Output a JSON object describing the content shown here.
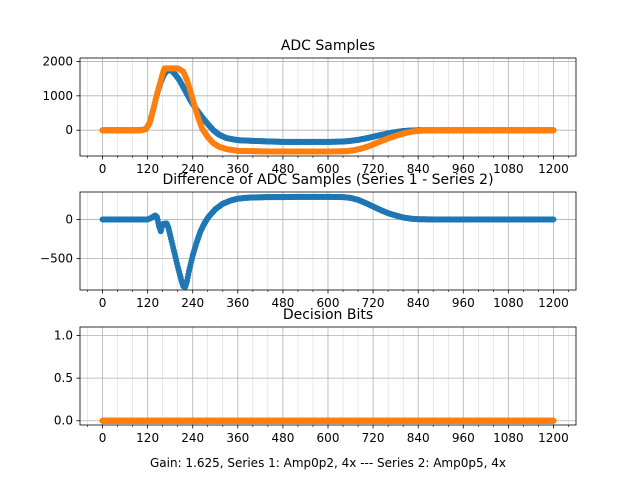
{
  "figure": {
    "caption": "Gain: 1.625, Series 1: Amp0p2, 4x --- Series 2: Amp0p5, 4x"
  },
  "colors": {
    "series1": "#1f77b4",
    "series2": "#ff7f0e",
    "grid": "#b0b0b0",
    "axes": "#000000"
  },
  "chart_data": [
    {
      "type": "scatter",
      "title": "ADC Samples",
      "xlabel": "",
      "ylabel": "",
      "xlim": [
        -60,
        1260
      ],
      "ylim": [
        -750,
        2100
      ],
      "x_ticks": [
        0,
        120,
        240,
        360,
        480,
        600,
        720,
        840,
        960,
        1080,
        1200
      ],
      "x_tick_labels": [
        "0",
        "120",
        "240",
        "360",
        "480",
        "600",
        "720",
        "840",
        "960",
        "1080",
        "1200"
      ],
      "x_minor_step": 40,
      "y_ticks": [
        0,
        1000,
        2000
      ],
      "y_tick_labels": [
        "0",
        "1000",
        "2000"
      ],
      "grid": true,
      "series": [
        {
          "key": "series1",
          "x": [
            0,
            100,
            115,
            125,
            135,
            145,
            155,
            165,
            175,
            185,
            195,
            205,
            215,
            225,
            235,
            250,
            265,
            280,
            295,
            310,
            330,
            360,
            400,
            450,
            480,
            500,
            550,
            600,
            640,
            660,
            680,
            700,
            720,
            740,
            760,
            780,
            800,
            820,
            850,
            900,
            1000,
            1100,
            1200
          ],
          "y": [
            0,
            0,
            30,
            200,
            600,
            1050,
            1400,
            1650,
            1760,
            1720,
            1600,
            1450,
            1250,
            1050,
            850,
            600,
            380,
            180,
            0,
            -130,
            -230,
            -290,
            -310,
            -330,
            -340,
            -340,
            -340,
            -340,
            -330,
            -310,
            -280,
            -240,
            -190,
            -140,
            -95,
            -55,
            -25,
            -10,
            0,
            0,
            0,
            0,
            0
          ]
        },
        {
          "key": "series2",
          "x": [
            0,
            100,
            115,
            125,
            135,
            145,
            155,
            160,
            165,
            175,
            200,
            215,
            225,
            235,
            245,
            255,
            265,
            280,
            295,
            310,
            330,
            360,
            400,
            450,
            500,
            550,
            600,
            650,
            670,
            690,
            710,
            730,
            750,
            770,
            790,
            810,
            830,
            850,
            880,
            950,
            1200
          ],
          "y": [
            0,
            0,
            30,
            200,
            600,
            1050,
            1450,
            1650,
            1800,
            1800,
            1800,
            1700,
            1450,
            1100,
            700,
            350,
            50,
            -200,
            -380,
            -480,
            -550,
            -600,
            -610,
            -620,
            -620,
            -620,
            -620,
            -610,
            -580,
            -530,
            -460,
            -370,
            -280,
            -200,
            -130,
            -70,
            -30,
            -10,
            0,
            0,
            0
          ]
        }
      ]
    },
    {
      "type": "scatter",
      "title": "Difference of ADC Samples (Series 1 - Series 2)",
      "xlabel": "",
      "ylabel": "",
      "xlim": [
        -60,
        1260
      ],
      "ylim": [
        -900,
        350
      ],
      "x_ticks": [
        0,
        120,
        240,
        360,
        480,
        600,
        720,
        840,
        960,
        1080,
        1200
      ],
      "x_tick_labels": [
        "0",
        "120",
        "240",
        "360",
        "480",
        "600",
        "720",
        "840",
        "960",
        "1080",
        "1200"
      ],
      "x_minor_step": 40,
      "y_ticks": [
        -500,
        0
      ],
      "y_tick_labels": [
        "−500",
        "0"
      ],
      "grid": true,
      "series": [
        {
          "key": "series1",
          "x": [
            0,
            100,
            120,
            130,
            140,
            145,
            150,
            155,
            160,
            170,
            175,
            180,
            190,
            200,
            210,
            215,
            220,
            225,
            230,
            240,
            250,
            260,
            270,
            280,
            300,
            320,
            340,
            360,
            380,
            400,
            440,
            480,
            520,
            560,
            600,
            640,
            660,
            680,
            700,
            720,
            740,
            760,
            780,
            800,
            820,
            840,
            880,
            1000,
            1200
          ],
          "y": [
            0,
            0,
            0,
            20,
            50,
            30,
            -80,
            -150,
            -60,
            -50,
            -100,
            -200,
            -400,
            -600,
            -780,
            -850,
            -860,
            -780,
            -660,
            -460,
            -300,
            -160,
            -60,
            20,
            130,
            200,
            240,
            265,
            275,
            280,
            285,
            285,
            288,
            288,
            288,
            285,
            275,
            250,
            210,
            165,
            120,
            80,
            50,
            25,
            10,
            3,
            0,
            0,
            0
          ]
        }
      ]
    },
    {
      "type": "scatter",
      "title": "Decision Bits",
      "xlabel": "Gain: 1.625, Series 1: Amp0p2, 4x --- Series 2: Amp0p5, 4x",
      "ylabel": "",
      "xlim": [
        -60,
        1260
      ],
      "ylim": [
        -0.05,
        1.1
      ],
      "x_ticks": [
        0,
        120,
        240,
        360,
        480,
        600,
        720,
        840,
        960,
        1080,
        1200
      ],
      "x_tick_labels": [
        "0",
        "120",
        "240",
        "360",
        "480",
        "600",
        "720",
        "840",
        "960",
        "1080",
        "1200"
      ],
      "x_minor_step": 40,
      "y_ticks": [
        0,
        0.5,
        1
      ],
      "y_tick_labels": [
        "0.0",
        "0.5",
        "1.0"
      ],
      "grid": true,
      "series": [
        {
          "key": "series1",
          "x": [
            0,
            1200
          ],
          "y": [
            0,
            0
          ]
        },
        {
          "key": "series2",
          "x": [
            0,
            1200
          ],
          "y": [
            0,
            0
          ]
        }
      ]
    }
  ]
}
